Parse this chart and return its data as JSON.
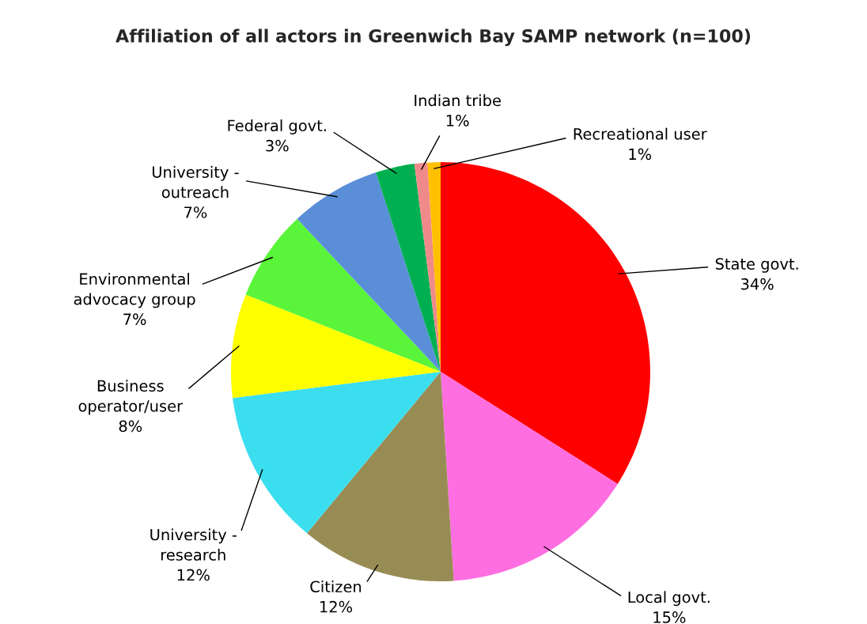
{
  "chart_data": {
    "type": "pie",
    "title": "Affiliation of all actors in Greenwich Bay SAMP network (n=100)",
    "categories": [
      "State govt.",
      "Local govt.",
      "Citizen",
      "University -\nresearch",
      "Business\noperator/user",
      "Environmental\nadvocacy group",
      "University -\noutreach",
      "Federal govt.",
      "Indian tribe",
      "Recreational user"
    ],
    "values": [
      34,
      15,
      12,
      12,
      8,
      7,
      7,
      3,
      1,
      1
    ],
    "value_labels": [
      "34%",
      "15%",
      "12%",
      "12%",
      "8%",
      "7%",
      "7%",
      "3%",
      "1%",
      "1%"
    ],
    "colors": [
      "#ff0000",
      "#ff6ee0",
      "#988c55",
      "#3bdeef",
      "#ffff00",
      "#5af53a",
      "#5a8fd8",
      "#00b050",
      "#f08a8a",
      "#ffc000"
    ],
    "legend": false
  }
}
